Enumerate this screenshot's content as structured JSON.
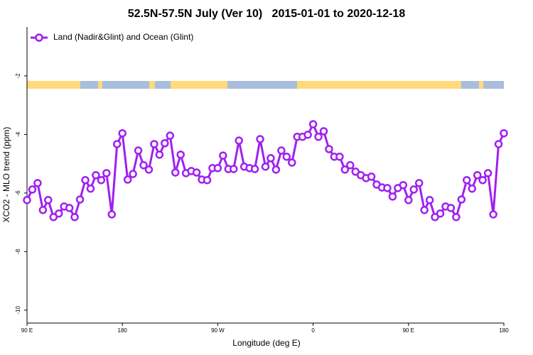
{
  "chart_data": {
    "type": "line",
    "title": "52.5N-57.5N July (Ver 10)   2015-01-01 to 2020-12-18",
    "xlabel": "Longitude (deg E)",
    "ylabel": "XCO2 - MLO trend (ppm)",
    "legend": "top-left",
    "x": [
      90,
      95,
      100,
      105,
      110,
      115,
      120,
      125,
      130,
      135,
      140,
      145,
      150,
      155,
      160,
      165,
      170,
      175,
      180,
      185,
      190,
      195,
      200,
      205,
      210,
      215,
      220,
      225,
      230,
      235,
      240,
      245,
      250,
      255,
      260,
      265,
      270,
      275,
      280,
      285,
      290,
      295,
      300,
      305,
      310,
      315,
      320,
      325,
      330,
      335,
      340,
      345,
      350,
      355,
      360,
      365,
      370,
      375,
      380,
      385,
      390,
      395,
      400,
      405,
      410,
      415,
      420,
      425,
      430,
      435,
      440,
      445,
      450,
      455,
      460,
      465,
      470,
      475,
      480,
      485,
      490,
      495,
      500,
      505,
      510,
      515,
      520,
      525,
      530,
      535,
      540
    ],
    "series": [
      {
        "name": "Land (Nadir&Glint) and Ocean (Glint)",
        "color": "#a020f0",
        "values": [
          -6.24,
          -5.88,
          -5.66,
          -6.58,
          -6.24,
          -6.82,
          -6.7,
          -6.46,
          -6.51,
          -6.82,
          -6.22,
          -5.56,
          -5.85,
          -5.39,
          -5.56,
          -5.32,
          -6.73,
          -4.33,
          -3.96,
          -5.54,
          -5.35,
          -4.55,
          -5.05,
          -5.2,
          -4.33,
          -4.69,
          -4.3,
          -4.04,
          -5.3,
          -4.69,
          -5.32,
          -5.25,
          -5.3,
          -5.54,
          -5.56,
          -5.15,
          -5.15,
          -4.72,
          -5.18,
          -5.18,
          -4.21,
          -5.1,
          -5.15,
          -5.18,
          -4.16,
          -5.1,
          -4.81,
          -5.2,
          -4.55,
          -4.76,
          -4.96,
          -4.08,
          -4.08,
          -4.01,
          -3.65,
          -4.08,
          -3.89,
          -4.5,
          -4.76,
          -4.76,
          -5.2,
          -5.05,
          -5.27,
          -5.39,
          -5.49,
          -5.44,
          -5.71,
          -5.81,
          -5.83,
          -6.12,
          -5.83,
          -5.73,
          -6.24,
          -5.88,
          -5.66,
          -6.58,
          -6.24,
          -6.82,
          -6.7,
          -6.46,
          -6.51,
          -6.82,
          -6.22,
          -5.56,
          -5.85,
          -5.39,
          -5.56,
          -5.32,
          -6.73,
          -4.33,
          -3.96
        ]
      }
    ],
    "xlim": [
      90,
      540
    ],
    "xticks": [
      {
        "value": 90,
        "label": "90 E"
      },
      180,
      {
        "value": 270,
        "label": "90 W"
      },
      {
        "value": 360,
        "label": "0"
      },
      {
        "value": 450,
        "label": "90 E"
      },
      {
        "value": 540,
        "label": "180"
      }
    ],
    "ylim": [
      -10.44,
      -0.33
    ],
    "yticks": [
      -10,
      -8,
      -6,
      -4,
      -2
    ]
  }
}
